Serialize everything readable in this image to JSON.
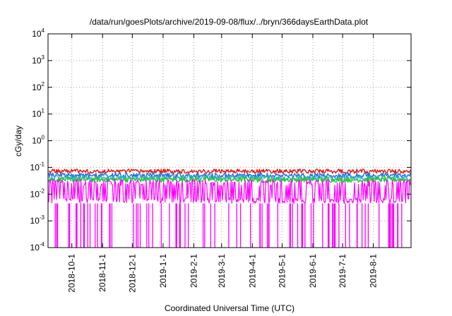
{
  "chart_data": {
    "type": "line",
    "title": "/data/run/goesPlots/archive/2019-09-08/flux/../bryn/366daysEarthData.plot",
    "xlabel": "Coordinated Universal Time (UTC)",
    "ylabel": "cGy/day",
    "yscale": "log",
    "ylim": [
      0.0001,
      10000
    ],
    "xlim": [
      "2018-09-07",
      "2019-09-08"
    ],
    "ytick_exponents": [
      -4,
      -3,
      -2,
      -1,
      0,
      1,
      2,
      3,
      4
    ],
    "xtick_labels": [
      "2018-10-1",
      "2018-11-1",
      "2018-12-1",
      "2019-1-1",
      "2019-2-1",
      "2019-3-1",
      "2019-4-1",
      "2019-5-1",
      "2019-6-1",
      "2019-7-1",
      "2019-8-1"
    ],
    "xtick_dates": [
      "2018-10-01",
      "2018-11-01",
      "2018-12-01",
      "2019-01-01",
      "2019-02-01",
      "2019-03-01",
      "2019-04-01",
      "2019-05-01",
      "2019-06-01",
      "2019-07-01",
      "2019-08-01"
    ],
    "grid": true,
    "legend": "none",
    "series": [
      {
        "color": "#e8140a",
        "typical": 0.072,
        "spread": 0.08
      },
      {
        "color": "#1f6fe8",
        "typical": 0.05,
        "spread": 0.1
      },
      {
        "color": "#28b8c8",
        "typical": 0.04,
        "spread": 0.1
      },
      {
        "color": "#30c030",
        "typical": 0.035,
        "spread": 0.1
      },
      {
        "color": "#ff00ff",
        "typical": 0.025,
        "low": 0.0045,
        "dropout_floor": 0.0001
      }
    ]
  }
}
